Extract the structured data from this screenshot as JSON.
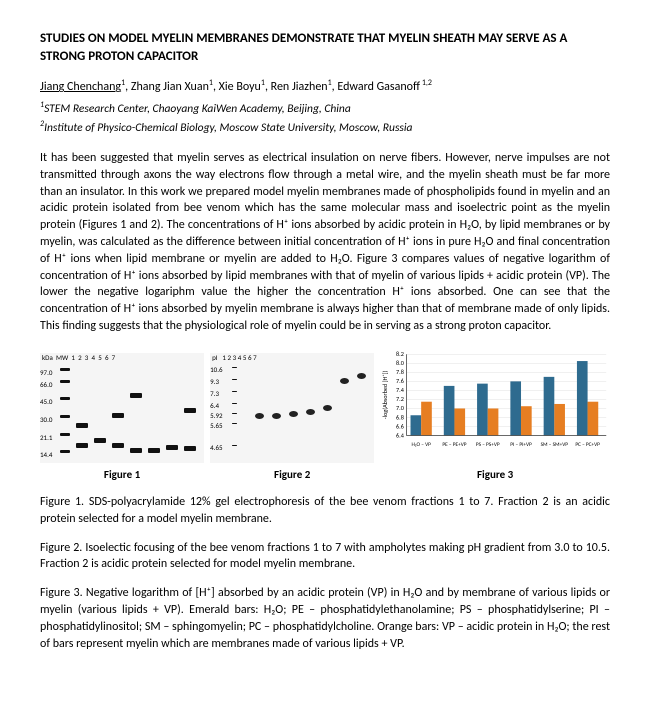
{
  "title": "STUDIES ON MODEL MYELIN MEMBRANES DEMONSTRATE THAT MYELIN SHEATH MAY SERVE AS A STRONG PROTON CAPACITOR",
  "authors": {
    "a1": "Jiang Chenchang",
    "a2": "Zhang Jian Xuan",
    "a3": "Xie Boyu",
    "a4": "Ren Jiazhen",
    "a5": "Edward Gasanoff"
  },
  "affil1": "STEM Research Center, Chaoyang KaiWen Academy, Beijing, China",
  "affil2": "Institute of Physico-Chemical Biology, Moscow State University, Moscow, Russia",
  "body": "It has been suggested that myelin serves as electrical insulation on nerve fibers. However, nerve impulses are not transmitted through axons the way electrons flow through a metal wire, and the myelin sheath must be far more than an insulator. In this work we prepared model myelin membranes made of phospholipids found in myelin and an acidic protein isolated from bee venom which has the same molecular mass and isoelectric point as the myelin protein (Figures 1 and 2). The concentrations of H⁺ ions absorbed by acidic protein in H₂O, by lipid membranes or by myelin, was calculated as the difference between initial concentration of H⁺ ions in pure H₂O and final concentration of H⁺ ions when lipid membrane or myelin are added to H₂O. Figure 3 compares values of negative logarithm of concentration of H⁺ ions absorbed by lipid membranes with that of myelin of various lipids + acidic protein (VP). The lower the negative logariphm value the higher the concentration H⁺ ions absorbed. One can see that the concentration of H⁺ ions absorbed by myelin membrane is always higher than that of membrane made of only lipids. This finding suggests that the physiological role of myelin could be in serving as a strong proton capacitor.",
  "fig1_label": "Figure 1",
  "fig2_label": "Figure 2",
  "fig3_label": "Figure 3",
  "gel1": {
    "lanes_header": "kDa  MW  1  2  3  4  5  6  7",
    "mw": [
      "97.0",
      "66.0",
      "45.0",
      "30.0",
      "21.1",
      "14.4"
    ]
  },
  "gel2": {
    "lanes_header": "pI   1 2 3 4 5 6 7",
    "pi": [
      "10.6",
      "9.3",
      "7.3",
      "6.4",
      "5.92",
      "5.65",
      "4.65"
    ]
  },
  "chart": {
    "type": "bar",
    "categories": [
      "H₂O – VP",
      "PE – PE+VP",
      "PS – PS+VP",
      "PI – PI+VP",
      "SM – SM+VP",
      "PC – PC+VP"
    ],
    "series": [
      {
        "name": "lipid",
        "color": "#2e6b8f",
        "values": [
          6.85,
          7.5,
          7.55,
          7.6,
          7.7,
          8.05
        ]
      },
      {
        "name": "myelin",
        "color": "#e67e22",
        "values": [
          7.15,
          7.0,
          7.0,
          7.05,
          7.1,
          7.15
        ]
      }
    ],
    "ylim": [
      6.4,
      8.2
    ],
    "ytick_step": 0.2,
    "ylabel": "-log(Absorbed [H⁺])",
    "bar_colors": [
      "#2e6b8f",
      "#e67e22"
    ],
    "background_color": "#ffffff",
    "grid_color": "#dddddd",
    "font_size": 7
  },
  "caption1": "Figure 1. SDS-polyacrylamide 12% gel electrophoresis of the bee venom fractions 1 to 7. Fraction 2 is an acidic protein selected for a model myelin membrane.",
  "caption2": "Figure 2. Isoelectic focusing of the bee venom fractions 1 to 7 with ampholytes making pH gradient from 3.0 to 10.5. Fraction 2 is acidic protein selected for model myelin membrane.",
  "caption3": "Figure 3. Negative logarithm of [H⁺] absorbed by an acidic protein (VP) in H₂O and by membrane of various lipids or myelin (various lipids + VP).  Emerald bars: H₂O; PE – phosphatidylethanolamine; PS – phosphatidylserine; PI – phosphatidylinositol; SM – sphingomyelin; PC – phosphatidylcholine. Orange bars: VP – acidic protein in H₂O; the rest of bars represent myelin which are membranes made of various lipids + VP."
}
